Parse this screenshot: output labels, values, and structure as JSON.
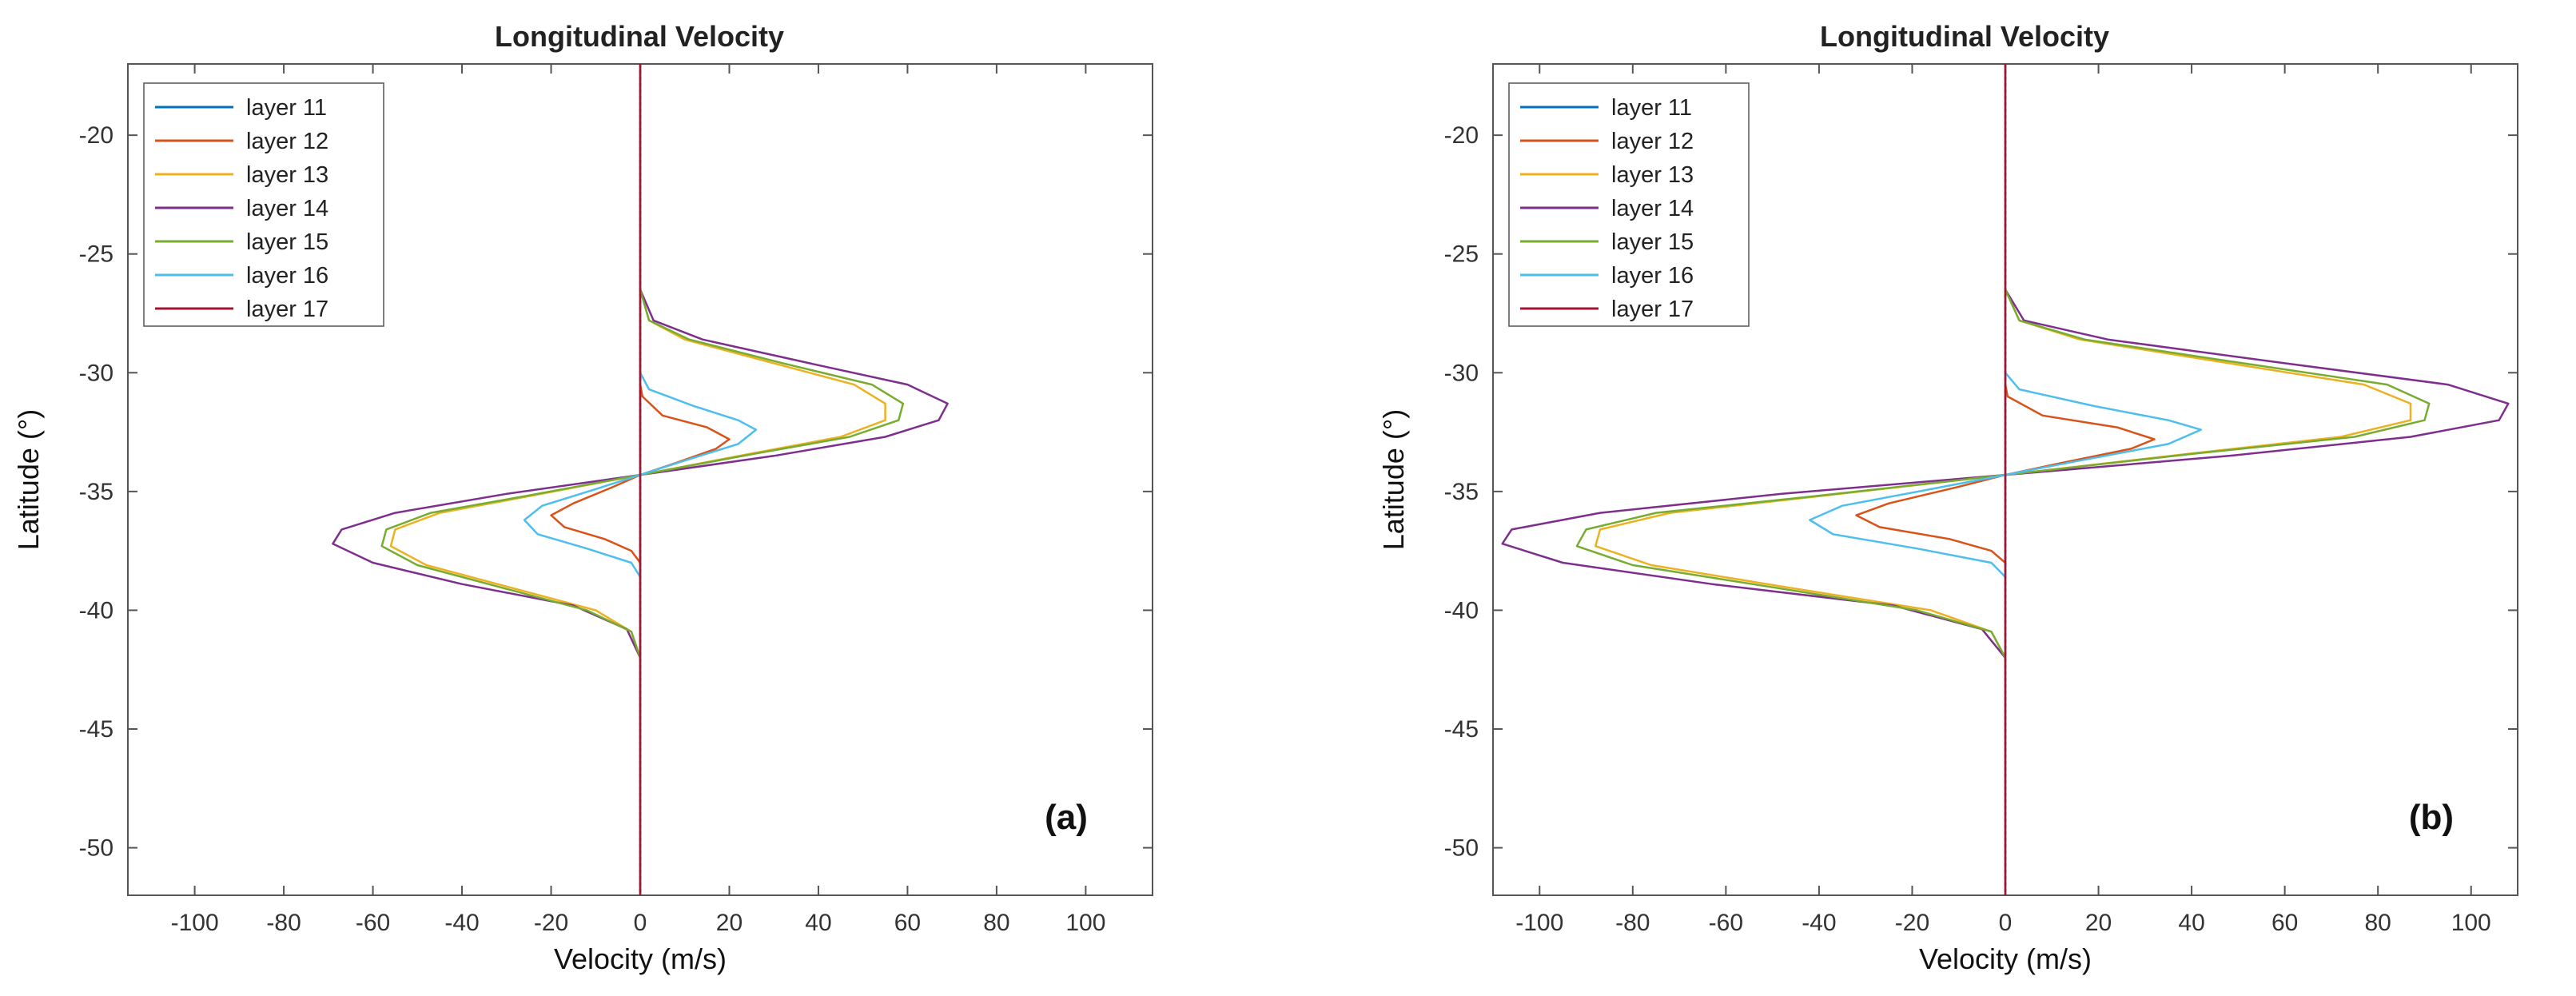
{
  "chart_data": [
    {
      "type": "line",
      "panel": "(a)",
      "title": "Longitudinal Velocity",
      "xlabel": "Velocity (m/s)",
      "ylabel": "Latitude (°)",
      "xlim": [
        -115,
        115
      ],
      "ylim": [
        -52,
        -17
      ],
      "xticks": [
        -100,
        -80,
        -60,
        -40,
        -20,
        0,
        20,
        40,
        60,
        80,
        100
      ],
      "yticks": [
        -50,
        -45,
        -40,
        -35,
        -30,
        -25,
        -20
      ],
      "legend_position": "top-left",
      "series": [
        {
          "name": "layer 11",
          "color": "#0072BD",
          "points": [
            [
              0,
              -17
            ],
            [
              0,
              -52
            ]
          ]
        },
        {
          "name": "layer 12",
          "color": "#D95319",
          "points": [
            [
              0,
              -30.5
            ],
            [
              0.5,
              -31
            ],
            [
              5,
              -31.8
            ],
            [
              15,
              -32.3
            ],
            [
              20,
              -32.8
            ],
            [
              17,
              -33.2
            ],
            [
              8,
              -33.8
            ],
            [
              0,
              -34.3
            ],
            [
              -6,
              -34.8
            ],
            [
              -15,
              -35.5
            ],
            [
              -20,
              -36
            ],
            [
              -17,
              -36.5
            ],
            [
              -8,
              -37
            ],
            [
              -2,
              -37.5
            ],
            [
              0,
              -38
            ]
          ]
        },
        {
          "name": "layer 13",
          "color": "#EDB120",
          "points": [
            [
              0,
              -26.5
            ],
            [
              2,
              -27.8
            ],
            [
              10,
              -28.6
            ],
            [
              30,
              -29.6
            ],
            [
              48,
              -30.5
            ],
            [
              55,
              -31.3
            ],
            [
              55,
              -32
            ],
            [
              45,
              -32.7
            ],
            [
              25,
              -33.4
            ],
            [
              0,
              -34.3
            ],
            [
              -25,
              -35.2
            ],
            [
              -45,
              -35.9
            ],
            [
              -55,
              -36.6
            ],
            [
              -56,
              -37.3
            ],
            [
              -48,
              -38.1
            ],
            [
              -30,
              -39
            ],
            [
              -10,
              -40
            ],
            [
              -2,
              -40.9
            ],
            [
              0,
              -42
            ]
          ]
        },
        {
          "name": "layer 14",
          "color": "#7E2F8E",
          "points": [
            [
              0,
              -26.5
            ],
            [
              3,
              -27.8
            ],
            [
              14,
              -28.6
            ],
            [
              38,
              -29.6
            ],
            [
              60,
              -30.5
            ],
            [
              69,
              -31.3
            ],
            [
              67,
              -32
            ],
            [
              55,
              -32.7
            ],
            [
              30,
              -33.5
            ],
            [
              0,
              -34.3
            ],
            [
              -30,
              -35.1
            ],
            [
              -55,
              -35.9
            ],
            [
              -67,
              -36.6
            ],
            [
              -69,
              -37.2
            ],
            [
              -60,
              -38
            ],
            [
              -40,
              -38.9
            ],
            [
              -15,
              -39.8
            ],
            [
              -3,
              -40.8
            ],
            [
              0,
              -42
            ]
          ]
        },
        {
          "name": "layer 15",
          "color": "#77AC30",
          "points": [
            [
              0,
              -26.5
            ],
            [
              2,
              -27.8
            ],
            [
              11,
              -28.6
            ],
            [
              32,
              -29.6
            ],
            [
              52,
              -30.5
            ],
            [
              59,
              -31.3
            ],
            [
              58,
              -32
            ],
            [
              47,
              -32.7
            ],
            [
              26,
              -33.4
            ],
            [
              0,
              -34.3
            ],
            [
              -26,
              -35.2
            ],
            [
              -47,
              -35.9
            ],
            [
              -57,
              -36.6
            ],
            [
              -58,
              -37.3
            ],
            [
              -50,
              -38.1
            ],
            [
              -32,
              -39
            ],
            [
              -12,
              -40
            ],
            [
              -2,
              -40.9
            ],
            [
              0,
              -42
            ]
          ]
        },
        {
          "name": "layer 16",
          "color": "#4DBEEE",
          "points": [
            [
              0,
              -30
            ],
            [
              2,
              -30.7
            ],
            [
              12,
              -31.4
            ],
            [
              22,
              -32
            ],
            [
              26,
              -32.4
            ],
            [
              22,
              -33
            ],
            [
              10,
              -33.7
            ],
            [
              0,
              -34.3
            ],
            [
              -10,
              -34.9
            ],
            [
              -22,
              -35.6
            ],
            [
              -26,
              -36.2
            ],
            [
              -23,
              -36.8
            ],
            [
              -12,
              -37.4
            ],
            [
              -2,
              -38
            ],
            [
              0,
              -38.6
            ]
          ]
        },
        {
          "name": "layer 17",
          "color": "#A2142F",
          "points": [
            [
              0,
              -17
            ],
            [
              0,
              -52
            ]
          ]
        }
      ]
    },
    {
      "type": "line",
      "panel": "(b)",
      "title": "Longitudinal Velocity",
      "xlabel": "Velocity (m/s)",
      "ylabel": "Latitude (°)",
      "xlim": [
        -110,
        110
      ],
      "ylim": [
        -52,
        -17
      ],
      "xticks": [
        -100,
        -80,
        -60,
        -40,
        -20,
        0,
        20,
        40,
        60,
        80,
        100
      ],
      "yticks": [
        -50,
        -45,
        -40,
        -35,
        -30,
        -25,
        -20
      ],
      "legend_position": "top-left",
      "series": [
        {
          "name": "layer 11",
          "color": "#0072BD",
          "points": [
            [
              0,
              -17
            ],
            [
              0,
              -52
            ]
          ]
        },
        {
          "name": "layer 12",
          "color": "#D95319",
          "points": [
            [
              0,
              -30.5
            ],
            [
              0.5,
              -31
            ],
            [
              8,
              -31.8
            ],
            [
              24,
              -32.3
            ],
            [
              32,
              -32.8
            ],
            [
              27,
              -33.2
            ],
            [
              12,
              -33.8
            ],
            [
              0,
              -34.3
            ],
            [
              -10,
              -34.8
            ],
            [
              -25,
              -35.5
            ],
            [
              -32,
              -36
            ],
            [
              -27,
              -36.5
            ],
            [
              -12,
              -37
            ],
            [
              -3,
              -37.5
            ],
            [
              0,
              -38
            ]
          ]
        },
        {
          "name": "layer 13",
          "color": "#EDB120",
          "points": [
            [
              0,
              -26.5
            ],
            [
              3,
              -27.8
            ],
            [
              16,
              -28.6
            ],
            [
              48,
              -29.6
            ],
            [
              77,
              -30.5
            ],
            [
              87,
              -31.3
            ],
            [
              87,
              -32
            ],
            [
              72,
              -32.7
            ],
            [
              40,
              -33.4
            ],
            [
              0,
              -34.3
            ],
            [
              -40,
              -35.2
            ],
            [
              -72,
              -35.9
            ],
            [
              -87,
              -36.6
            ],
            [
              -88,
              -37.3
            ],
            [
              -76,
              -38.1
            ],
            [
              -48,
              -39
            ],
            [
              -16,
              -40
            ],
            [
              -3,
              -40.9
            ],
            [
              0,
              -42
            ]
          ]
        },
        {
          "name": "layer 14",
          "color": "#7E2F8E",
          "points": [
            [
              0,
              -26.5
            ],
            [
              4,
              -27.8
            ],
            [
              22,
              -28.6
            ],
            [
              60,
              -29.6
            ],
            [
              95,
              -30.5
            ],
            [
              108,
              -31.3
            ],
            [
              106,
              -32
            ],
            [
              87,
              -32.7
            ],
            [
              48,
              -33.5
            ],
            [
              0,
              -34.3
            ],
            [
              -48,
              -35.1
            ],
            [
              -87,
              -35.9
            ],
            [
              -106,
              -36.6
            ],
            [
              -108,
              -37.2
            ],
            [
              -95,
              -38
            ],
            [
              -63,
              -38.9
            ],
            [
              -24,
              -39.8
            ],
            [
              -5,
              -40.8
            ],
            [
              0,
              -42
            ]
          ]
        },
        {
          "name": "layer 15",
          "color": "#77AC30",
          "points": [
            [
              0,
              -26.5
            ],
            [
              3,
              -27.8
            ],
            [
              17,
              -28.6
            ],
            [
              51,
              -29.6
            ],
            [
              82,
              -30.5
            ],
            [
              91,
              -31.3
            ],
            [
              90,
              -32
            ],
            [
              75,
              -32.7
            ],
            [
              41,
              -33.4
            ],
            [
              0,
              -34.3
            ],
            [
              -41,
              -35.2
            ],
            [
              -75,
              -35.9
            ],
            [
              -90,
              -36.6
            ],
            [
              -92,
              -37.3
            ],
            [
              -80,
              -38.1
            ],
            [
              -51,
              -39
            ],
            [
              -19,
              -40
            ],
            [
              -3,
              -40.9
            ],
            [
              0,
              -42
            ]
          ]
        },
        {
          "name": "layer 16",
          "color": "#4DBEEE",
          "points": [
            [
              0,
              -30
            ],
            [
              3,
              -30.7
            ],
            [
              19,
              -31.4
            ],
            [
              35,
              -32
            ],
            [
              42,
              -32.4
            ],
            [
              35,
              -33
            ],
            [
              16,
              -33.7
            ],
            [
              0,
              -34.3
            ],
            [
              -16,
              -34.9
            ],
            [
              -35,
              -35.6
            ],
            [
              -42,
              -36.2
            ],
            [
              -37,
              -36.8
            ],
            [
              -19,
              -37.4
            ],
            [
              -3,
              -38
            ],
            [
              0,
              -38.6
            ]
          ]
        },
        {
          "name": "layer 17",
          "color": "#A2142F",
          "points": [
            [
              0,
              -17
            ],
            [
              0,
              -52
            ]
          ]
        }
      ]
    }
  ]
}
